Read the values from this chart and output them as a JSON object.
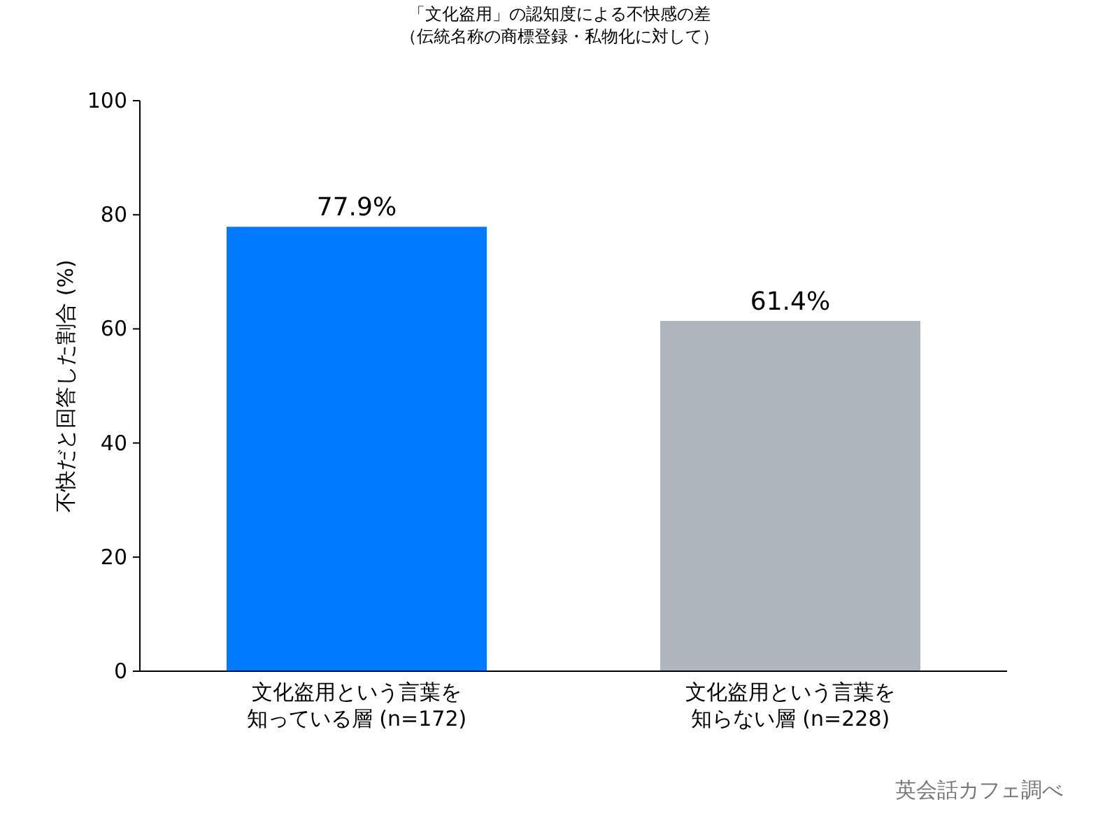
{
  "chart_data": {
    "type": "bar",
    "title": "「文化盗用」の認知度による不快感の差",
    "subtitle": "（伝統名称の商標登録・私物化に対して）",
    "ylabel": "不快だと回答した割合 (%)",
    "categories": [
      "文化盗用という言葉を知っている層 (n=172)",
      "文化盗用という言葉を知らない層 (n=228)"
    ],
    "values": [
      77.9,
      61.4
    ],
    "colors": [
      "#007bff",
      "#adb5bd"
    ],
    "value_labels": [
      "77.9%",
      "61.4%"
    ],
    "ylim": [
      0,
      100
    ],
    "yticks": [
      0,
      20,
      40,
      60,
      80,
      100
    ],
    "grid": false,
    "annotations": [
      "英会話カフェ調べ"
    ]
  }
}
